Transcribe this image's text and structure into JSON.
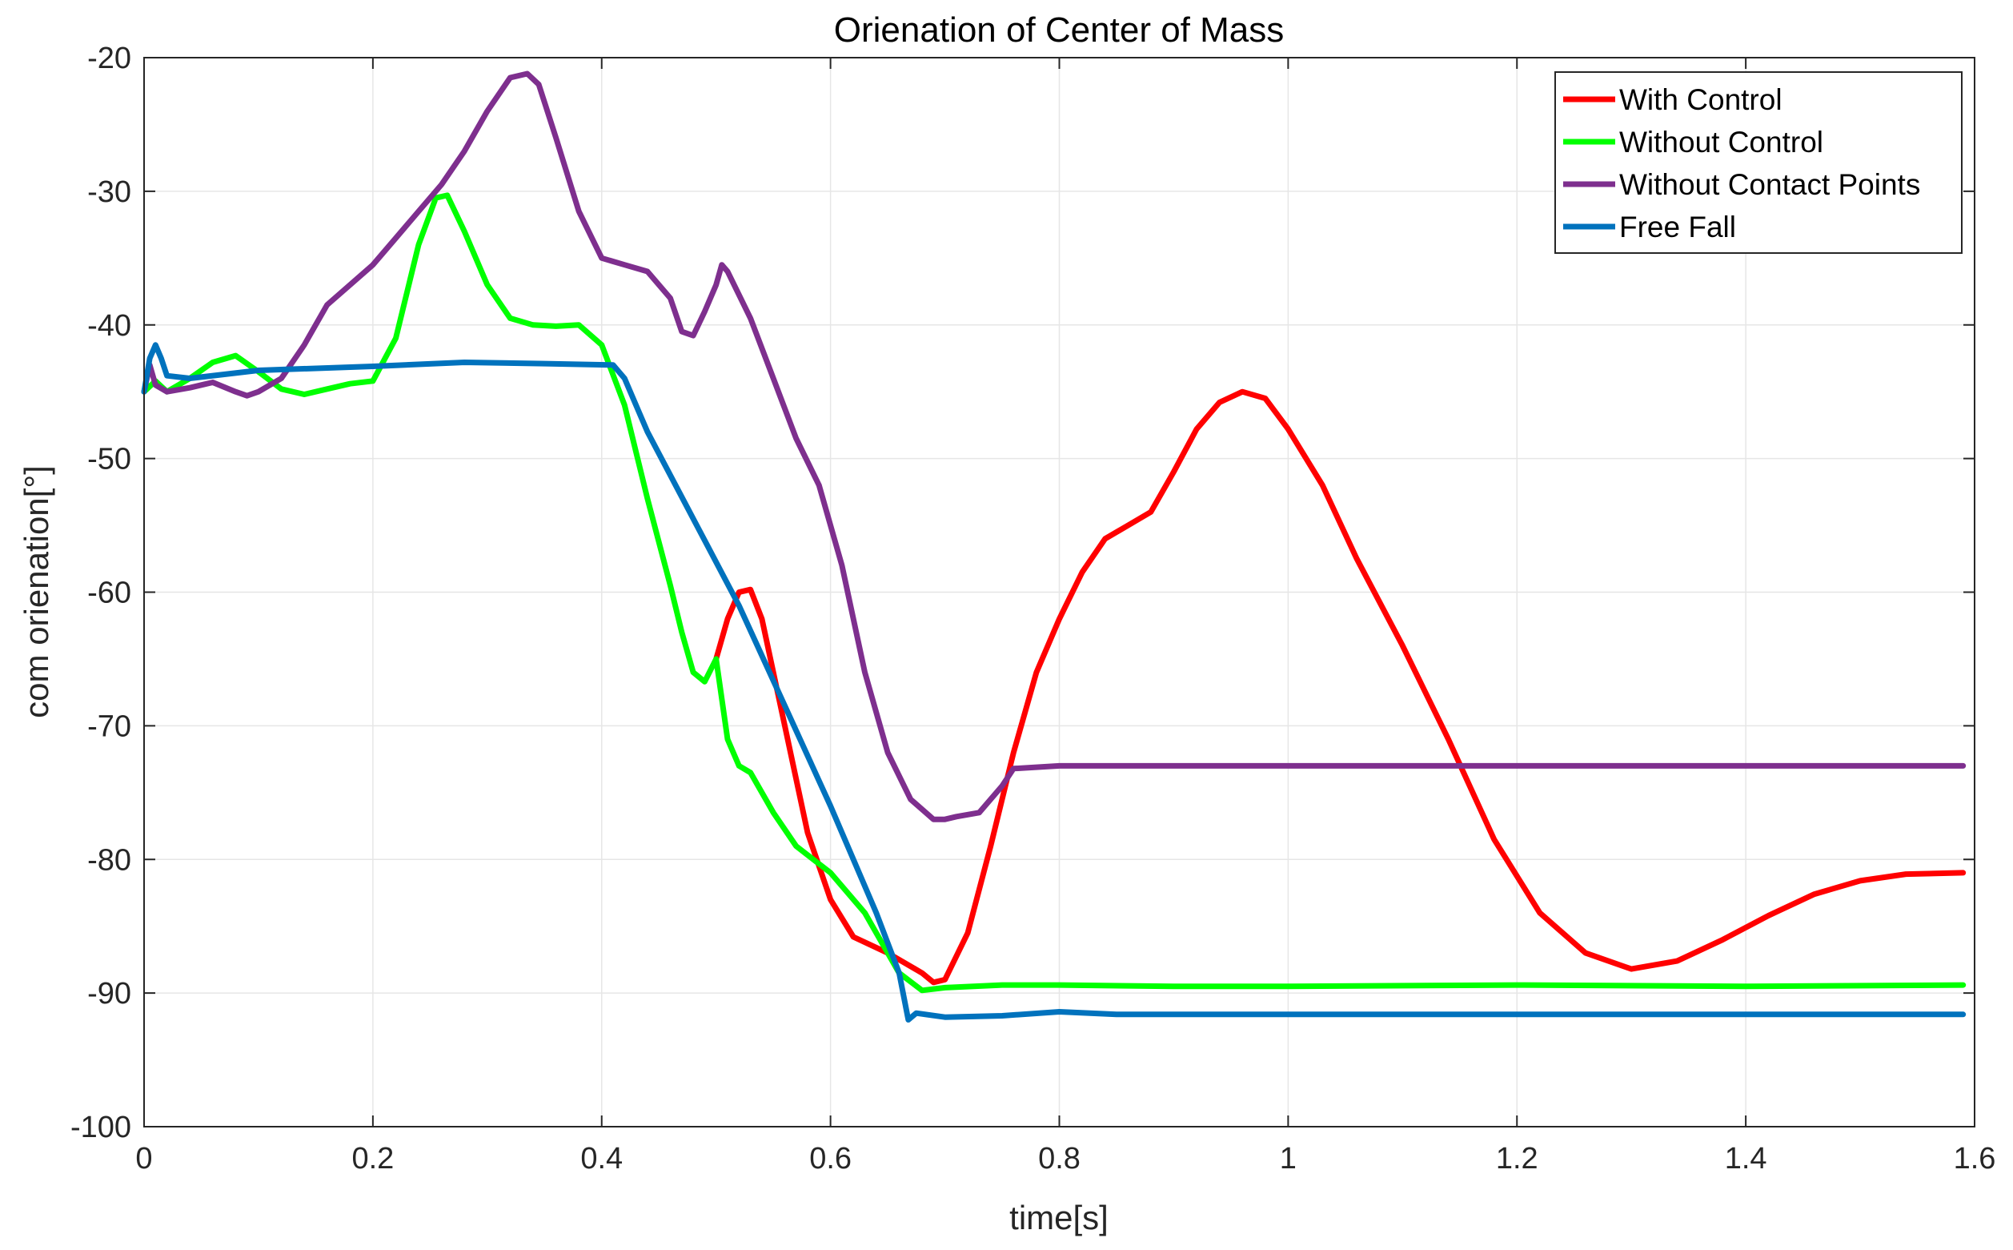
{
  "chart_data": {
    "type": "line",
    "title": "Orienation of Center of Mass",
    "xlabel": "time[s]",
    "ylabel": "com orienation[°]",
    "xlim": [
      0,
      1.6
    ],
    "ylim": [
      -100,
      -20
    ],
    "xticks": [
      0,
      0.2,
      0.4,
      0.6,
      0.8,
      1,
      1.2,
      1.4,
      1.6
    ],
    "xtick_labels": [
      "0",
      "0.2",
      "0.4",
      "0.6",
      "0.8",
      "1",
      "1.2",
      "1.4",
      "1.6"
    ],
    "yticks": [
      -100,
      -90,
      -80,
      -70,
      -60,
      -50,
      -40,
      -30,
      -20
    ],
    "ytick_labels": [
      "-100",
      "-90",
      "-80",
      "-70",
      "-60",
      "-50",
      "-40",
      "-30",
      "-20"
    ],
    "grid": true,
    "legend_position": "top-right",
    "series": [
      {
        "name": "With Control",
        "color": "#ff0000",
        "points": [
          [
            0.5,
            -65
          ],
          [
            0.51,
            -62
          ],
          [
            0.52,
            -60
          ],
          [
            0.53,
            -59.8
          ],
          [
            0.54,
            -62
          ],
          [
            0.56,
            -70
          ],
          [
            0.58,
            -78
          ],
          [
            0.6,
            -83
          ],
          [
            0.62,
            -85.8
          ],
          [
            0.65,
            -87
          ],
          [
            0.68,
            -88.5
          ],
          [
            0.69,
            -89.2
          ],
          [
            0.7,
            -89
          ],
          [
            0.72,
            -85.5
          ],
          [
            0.74,
            -79
          ],
          [
            0.76,
            -72
          ],
          [
            0.78,
            -66
          ],
          [
            0.8,
            -62
          ],
          [
            0.82,
            -58.5
          ],
          [
            0.84,
            -56
          ],
          [
            0.86,
            -55
          ],
          [
            0.88,
            -54
          ],
          [
            0.9,
            -51
          ],
          [
            0.92,
            -47.8
          ],
          [
            0.94,
            -45.8
          ],
          [
            0.96,
            -45
          ],
          [
            0.98,
            -45.5
          ],
          [
            1.0,
            -47.8
          ],
          [
            1.03,
            -52
          ],
          [
            1.06,
            -57.5
          ],
          [
            1.1,
            -64
          ],
          [
            1.14,
            -71
          ],
          [
            1.18,
            -78.5
          ],
          [
            1.22,
            -84
          ],
          [
            1.26,
            -87
          ],
          [
            1.3,
            -88.2
          ],
          [
            1.34,
            -87.6
          ],
          [
            1.38,
            -86
          ],
          [
            1.42,
            -84.2
          ],
          [
            1.46,
            -82.6
          ],
          [
            1.5,
            -81.6
          ],
          [
            1.54,
            -81.1
          ],
          [
            1.59,
            -81
          ]
        ]
      },
      {
        "name": "Without Control",
        "color": "#00ff00",
        "points": [
          [
            0,
            -45
          ],
          [
            0.01,
            -44.2
          ],
          [
            0.02,
            -45
          ],
          [
            0.04,
            -44
          ],
          [
            0.06,
            -42.8
          ],
          [
            0.08,
            -42.3
          ],
          [
            0.1,
            -43.5
          ],
          [
            0.12,
            -44.8
          ],
          [
            0.14,
            -45.2
          ],
          [
            0.16,
            -44.8
          ],
          [
            0.18,
            -44.4
          ],
          [
            0.2,
            -44.2
          ],
          [
            0.22,
            -41
          ],
          [
            0.24,
            -34
          ],
          [
            0.255,
            -30.5
          ],
          [
            0.265,
            -30.3
          ],
          [
            0.28,
            -33
          ],
          [
            0.3,
            -37
          ],
          [
            0.32,
            -39.5
          ],
          [
            0.34,
            -40
          ],
          [
            0.36,
            -40.1
          ],
          [
            0.38,
            -40
          ],
          [
            0.4,
            -41.5
          ],
          [
            0.42,
            -46
          ],
          [
            0.44,
            -53
          ],
          [
            0.46,
            -59.5
          ],
          [
            0.47,
            -63
          ],
          [
            0.48,
            -66
          ],
          [
            0.49,
            -66.7
          ],
          [
            0.5,
            -65
          ],
          [
            0.51,
            -71
          ],
          [
            0.52,
            -73
          ],
          [
            0.53,
            -73.5
          ],
          [
            0.55,
            -76.5
          ],
          [
            0.57,
            -79
          ],
          [
            0.6,
            -81
          ],
          [
            0.63,
            -84
          ],
          [
            0.66,
            -88.5
          ],
          [
            0.68,
            -89.8
          ],
          [
            0.7,
            -89.6
          ],
          [
            0.75,
            -89.4
          ],
          [
            0.8,
            -89.4
          ],
          [
            0.9,
            -89.5
          ],
          [
            1.0,
            -89.5
          ],
          [
            1.2,
            -89.4
          ],
          [
            1.4,
            -89.5
          ],
          [
            1.59,
            -89.4
          ]
        ]
      },
      {
        "name": "Without Contact Points",
        "color": "#7e2f8e",
        "points": [
          [
            0,
            -45
          ],
          [
            0.005,
            -43
          ],
          [
            0.01,
            -44.5
          ],
          [
            0.02,
            -45
          ],
          [
            0.04,
            -44.7
          ],
          [
            0.06,
            -44.3
          ],
          [
            0.08,
            -45
          ],
          [
            0.09,
            -45.3
          ],
          [
            0.1,
            -45
          ],
          [
            0.12,
            -44
          ],
          [
            0.14,
            -41.5
          ],
          [
            0.16,
            -38.5
          ],
          [
            0.18,
            -37
          ],
          [
            0.2,
            -35.5
          ],
          [
            0.22,
            -33.5
          ],
          [
            0.24,
            -31.5
          ],
          [
            0.26,
            -29.5
          ],
          [
            0.28,
            -27
          ],
          [
            0.3,
            -24
          ],
          [
            0.32,
            -21.5
          ],
          [
            0.335,
            -21.2
          ],
          [
            0.345,
            -22
          ],
          [
            0.36,
            -26
          ],
          [
            0.38,
            -31.5
          ],
          [
            0.4,
            -35
          ],
          [
            0.42,
            -35.5
          ],
          [
            0.44,
            -36
          ],
          [
            0.46,
            -38
          ],
          [
            0.47,
            -40.5
          ],
          [
            0.48,
            -40.8
          ],
          [
            0.49,
            -39
          ],
          [
            0.5,
            -37
          ],
          [
            0.505,
            -35.5
          ],
          [
            0.51,
            -36
          ],
          [
            0.53,
            -39.5
          ],
          [
            0.55,
            -44
          ],
          [
            0.57,
            -48.5
          ],
          [
            0.59,
            -52
          ],
          [
            0.61,
            -58
          ],
          [
            0.63,
            -66
          ],
          [
            0.65,
            -72
          ],
          [
            0.67,
            -75.5
          ],
          [
            0.69,
            -77
          ],
          [
            0.7,
            -77
          ],
          [
            0.71,
            -76.8
          ],
          [
            0.73,
            -76.5
          ],
          [
            0.75,
            -74.5
          ],
          [
            0.76,
            -73.2
          ],
          [
            0.8,
            -73
          ],
          [
            1.0,
            -73
          ],
          [
            1.2,
            -73
          ],
          [
            1.4,
            -73
          ],
          [
            1.59,
            -73
          ]
        ]
      },
      {
        "name": "Free Fall",
        "color": "#0072bd",
        "points": [
          [
            0,
            -45
          ],
          [
            0.005,
            -42.5
          ],
          [
            0.01,
            -41.5
          ],
          [
            0.015,
            -42.5
          ],
          [
            0.02,
            -43.8
          ],
          [
            0.04,
            -44
          ],
          [
            0.1,
            -43.4
          ],
          [
            0.2,
            -43.1
          ],
          [
            0.28,
            -42.8
          ],
          [
            0.35,
            -42.9
          ],
          [
            0.41,
            -43
          ],
          [
            0.42,
            -44
          ],
          [
            0.44,
            -48
          ],
          [
            0.48,
            -54.5
          ],
          [
            0.52,
            -61
          ],
          [
            0.56,
            -68.5
          ],
          [
            0.6,
            -76
          ],
          [
            0.64,
            -84
          ],
          [
            0.66,
            -88.5
          ],
          [
            0.668,
            -92
          ],
          [
            0.675,
            -91.5
          ],
          [
            0.7,
            -91.8
          ],
          [
            0.75,
            -91.7
          ],
          [
            0.8,
            -91.4
          ],
          [
            0.85,
            -91.6
          ],
          [
            1.0,
            -91.6
          ],
          [
            1.2,
            -91.6
          ],
          [
            1.4,
            -91.6
          ],
          [
            1.59,
            -91.6
          ]
        ]
      }
    ]
  }
}
